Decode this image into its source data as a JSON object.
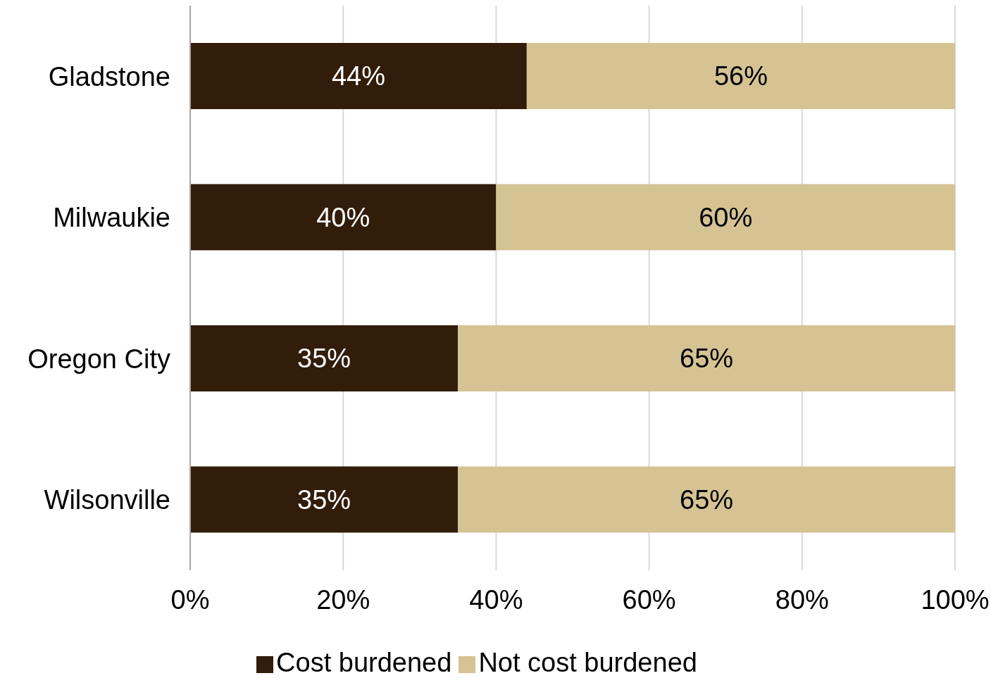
{
  "chart_data": {
    "type": "bar",
    "orientation": "horizontal",
    "stacked": true,
    "categories": [
      "Gladstone",
      "Milwaukie",
      "Oregon City",
      "Wilsonville"
    ],
    "series": [
      {
        "name": "Cost burdened",
        "color": "#321c0a",
        "values": [
          44,
          40,
          35,
          35
        ],
        "value_labels": [
          "44%",
          "40%",
          "35%",
          "35%"
        ]
      },
      {
        "name": "Not cost burdened",
        "color": "#d6c394",
        "values": [
          56,
          60,
          65,
          65
        ],
        "value_labels": [
          "56%",
          "60%",
          "65%",
          "65%"
        ]
      }
    ],
    "xlim": [
      0,
      100
    ],
    "xticks": [
      {
        "value": 0,
        "label": "0%"
      },
      {
        "value": 20,
        "label": "20%"
      },
      {
        "value": 40,
        "label": "40%"
      },
      {
        "value": 60,
        "label": "60%"
      },
      {
        "value": 80,
        "label": "80%"
      },
      {
        "value": 100,
        "label": "100%"
      }
    ],
    "grid": "x",
    "legend": "bottom"
  }
}
